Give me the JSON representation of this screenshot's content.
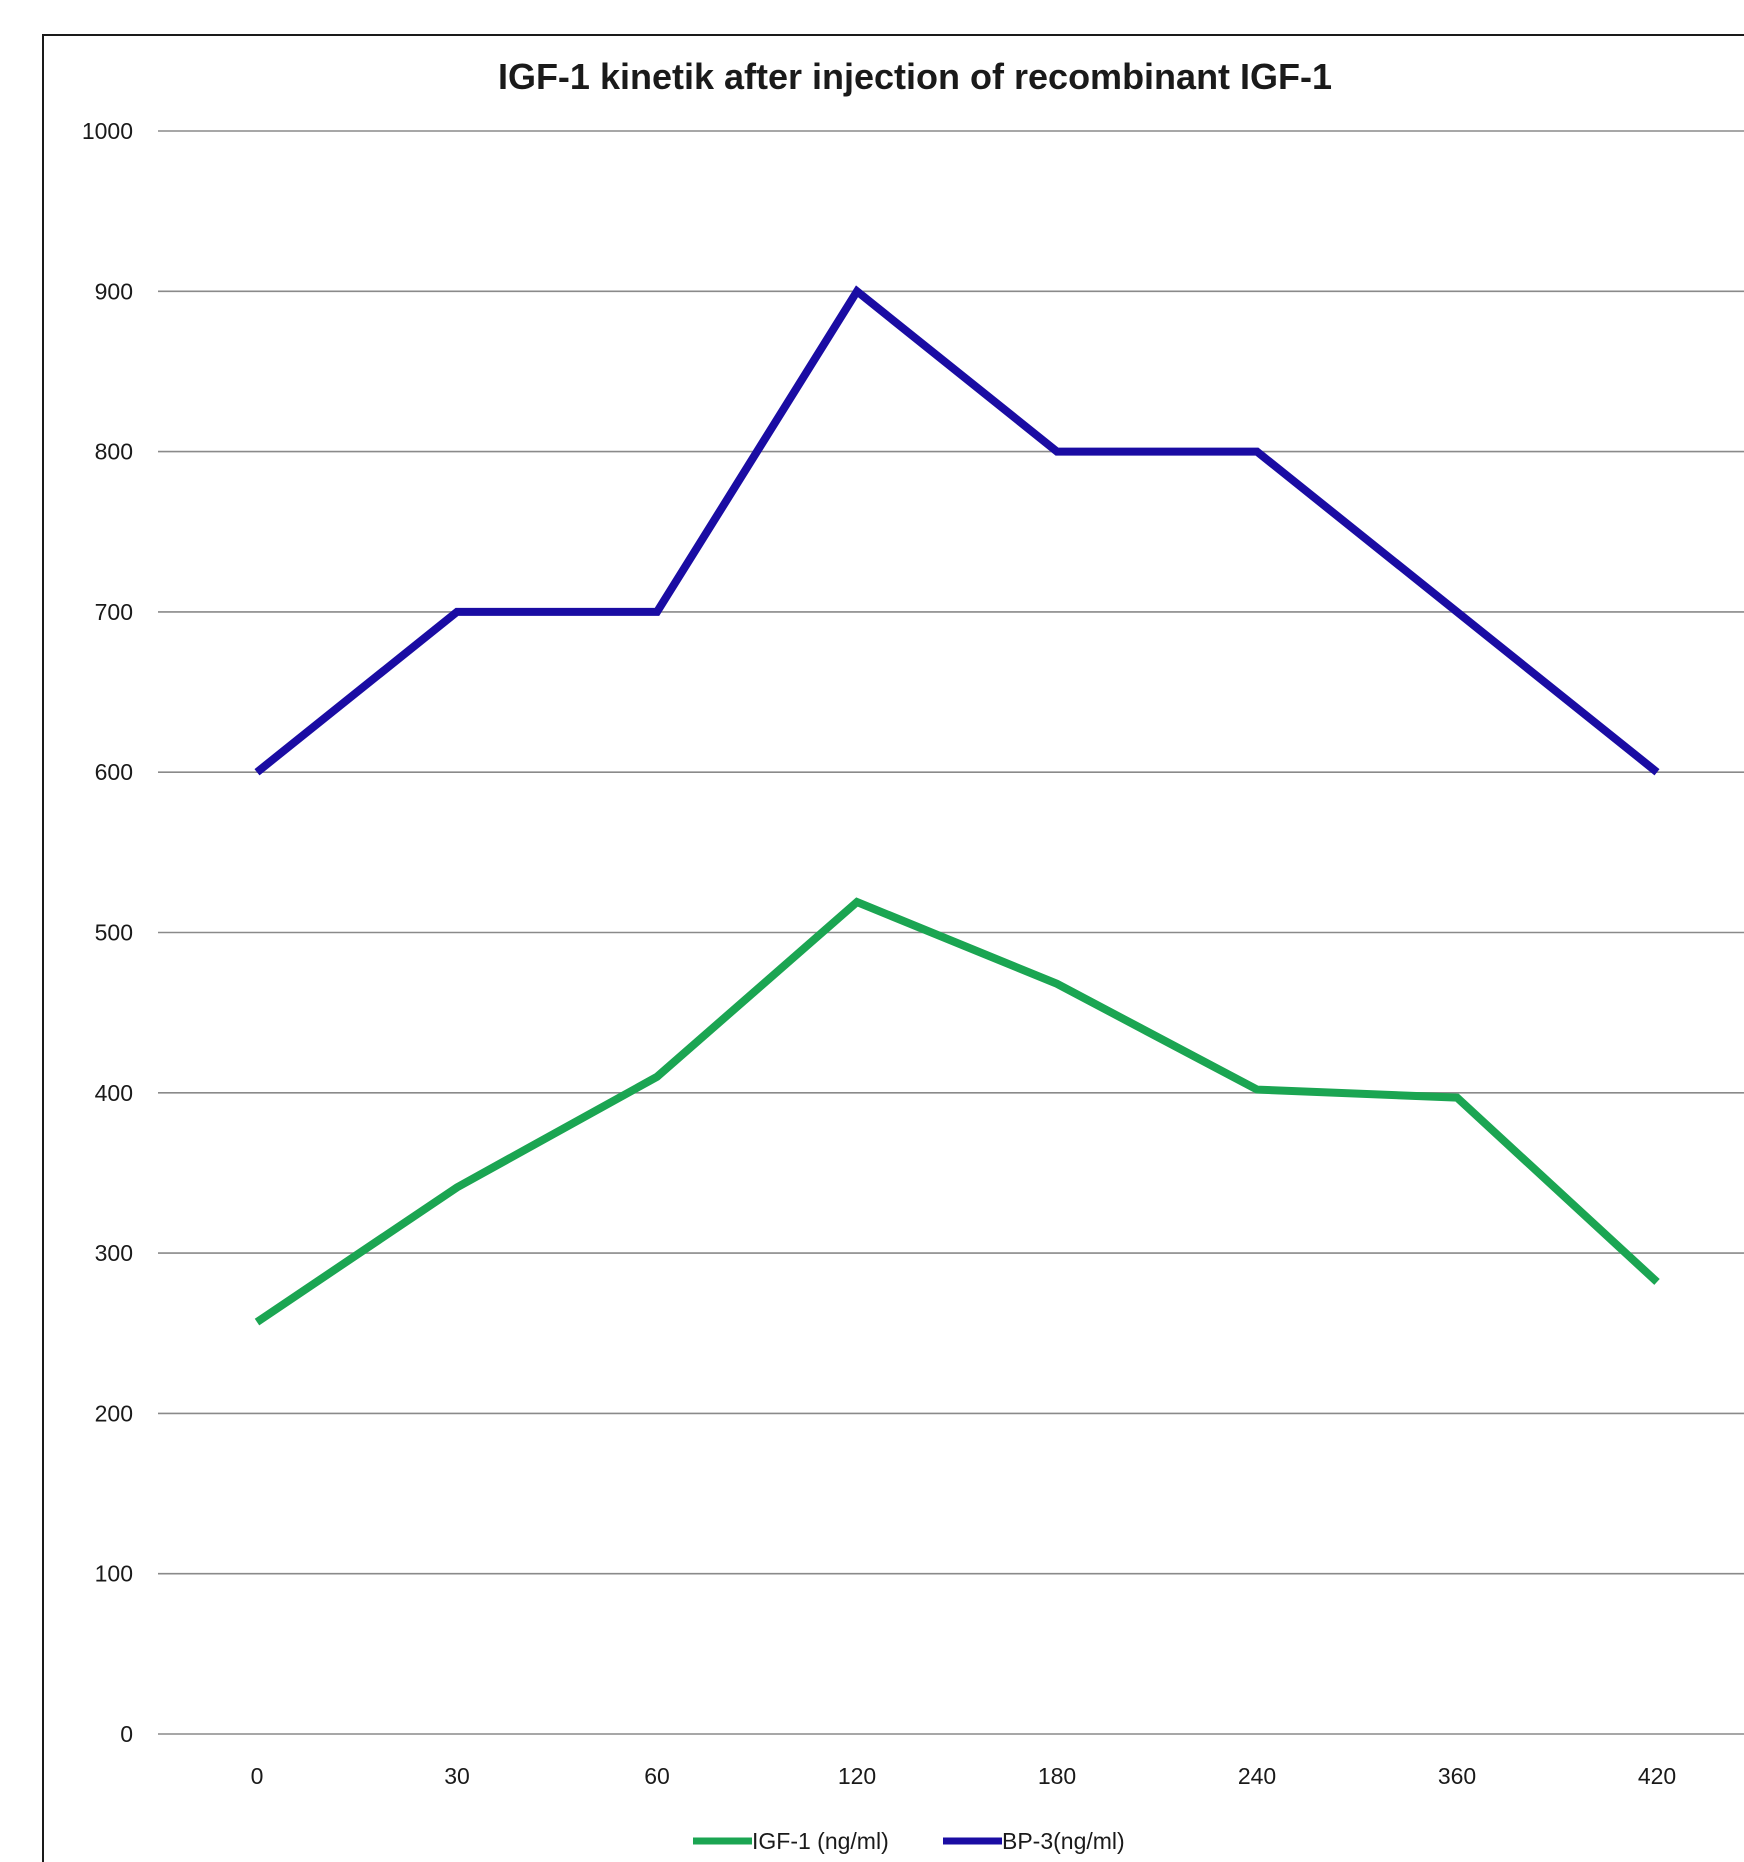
{
  "chart_data": {
    "type": "line",
    "title": "IGF-1 kinetik after injection of recombinant IGF-1",
    "xlabel": "",
    "ylabel": "",
    "categories": [
      "0",
      "30",
      "60",
      "120",
      "180",
      "240",
      "360",
      "420"
    ],
    "ylim": [
      0,
      1000
    ],
    "yticks": [
      0,
      100,
      200,
      300,
      400,
      500,
      600,
      700,
      800,
      900,
      1000
    ],
    "grid": true,
    "legend": "bottom",
    "series": [
      {
        "name": "IGF-1 (ng/ml)",
        "color": "#1ba552",
        "values": [
          257,
          341,
          410,
          519,
          468,
          402,
          397,
          282
        ]
      },
      {
        "name": "BP-3(ng/ml)",
        "color": "#1a0ca3",
        "values": [
          600,
          700,
          700,
          900,
          800,
          800,
          700,
          600
        ]
      }
    ]
  }
}
